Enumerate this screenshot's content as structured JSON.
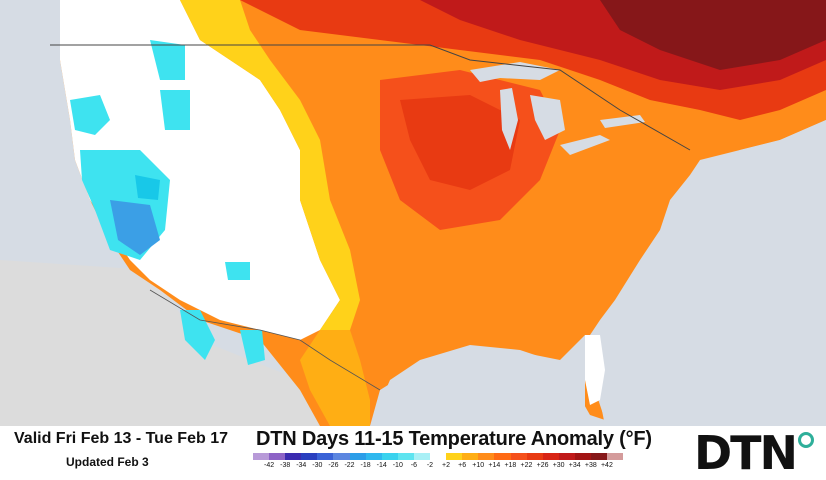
{
  "map": {
    "title": "DTN Days 11-15 Temperature Anomaly (°F)",
    "valid": "Valid Fri Feb 13 - Tue Feb 17",
    "updated": "Updated Feb 3",
    "brand": "DTN",
    "colors": {
      "ocean": "#d6dce4",
      "land_outside": "#dcdcdc",
      "neutral": "#ffffff",
      "cold_light": "#3ee3f0",
      "cold_mid": "#18c8e8",
      "cold_deep": "#3b9fe6",
      "warm_p2": "#ffd21a",
      "warm_p6": "#ffae14",
      "warm_p10": "#ff8c1a",
      "warm_p14": "#ff6a14",
      "warm_p18": "#f5501b",
      "warm_p22": "#e83a12",
      "warm_p26": "#d82415",
      "warm_p30": "#c01a1a",
      "warm_p34": "#a21414",
      "warm_p38": "#861719",
      "warm_p42": "#6e1a1a",
      "brand_accent": "#2eaf9a"
    },
    "scale": {
      "labels": [
        "-42",
        "-38",
        "-34",
        "-30",
        "-26",
        "-22",
        "-18",
        "-14",
        "-10",
        "-6",
        "-2",
        "+2",
        "+6",
        "+10",
        "+14",
        "+18",
        "+22",
        "+26",
        "+30",
        "+34",
        "+38",
        "+42"
      ],
      "colors": [
        "#b89ad8",
        "#8d63c6",
        "#3b2bb0",
        "#2a3fbf",
        "#3a62d6",
        "#5c86e0",
        "#2c9ee8",
        "#2fb8ee",
        "#3ad2ee",
        "#5ee4f0",
        "#a9f0f6",
        "#ffffff",
        "#ffd21a",
        "#ffae14",
        "#ff8c1a",
        "#ff6a14",
        "#f5501b",
        "#e83a12",
        "#d82415",
        "#c01a1a",
        "#a21414",
        "#861719",
        "#d49b9b"
      ]
    }
  }
}
